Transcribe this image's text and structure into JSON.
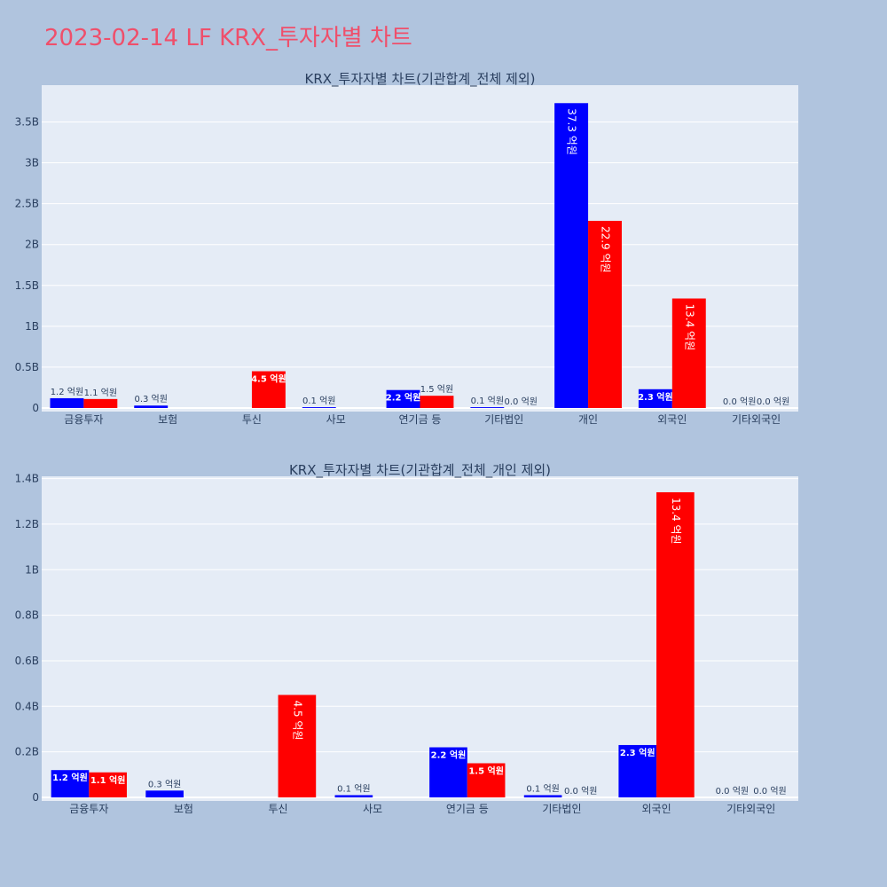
{
  "page": {
    "title": "2023-02-14 LF KRX_투자자별 차트"
  },
  "colors": {
    "background": "#b0c4de",
    "plot_bg": "#e5ecf6",
    "buy": "#0000ff",
    "sell": "#ff0000",
    "title": "#ef4f6b"
  },
  "chart_data": [
    {
      "type": "bar",
      "title": "KRX_투자자별 차트(기관합계_전체 제외)",
      "categories": [
        "금융투자",
        "보험",
        "투신",
        "사모",
        "연기금 등",
        "기타법인",
        "개인",
        "외국인",
        "기타외국인"
      ],
      "series": [
        {
          "color": "#0000ff",
          "values": [
            120000000,
            30000000,
            0,
            10000000,
            220000000,
            10000000,
            3730000000,
            230000000,
            0
          ],
          "labels": [
            "1.2 억원",
            "0.3 억원",
            "",
            "0.1 억원",
            "2.2 억원",
            "0.1 억원",
            "37.3 억원",
            "2.3 억원",
            "0.0 억원"
          ]
        },
        {
          "color": "#ff0000",
          "values": [
            110000000,
            0,
            450000000,
            0,
            150000000,
            0,
            2290000000,
            1340000000,
            0
          ],
          "labels": [
            "1.1 억원",
            "",
            "4.5 억원",
            "",
            "1.5 억원",
            "0.0 억원",
            "22.9 억원",
            "13.4 억원",
            "0.0 억원"
          ]
        }
      ],
      "ylim": [
        0,
        3950000000
      ],
      "yticks": [
        0,
        500000000,
        1000000000,
        1500000000,
        2000000000,
        2500000000,
        3000000000,
        3500000000
      ],
      "ytick_labels": [
        "0",
        "0.5B",
        "1B",
        "1.5B",
        "2B",
        "2.5B",
        "3B",
        "3.5B"
      ],
      "grid": true
    },
    {
      "type": "bar",
      "title": "KRX_투자자별 차트(기관합계_전체_개인 제외)",
      "categories": [
        "금융투자",
        "보험",
        "투신",
        "사모",
        "연기금 등",
        "기타법인",
        "외국인",
        "기타외국인"
      ],
      "series": [
        {
          "color": "#0000ff",
          "values": [
            120000000,
            30000000,
            0,
            10000000,
            220000000,
            10000000,
            230000000,
            0
          ],
          "labels": [
            "1.2 억원",
            "0.3 억원",
            "",
            "0.1 억원",
            "2.2 억원",
            "0.1 억원",
            "2.3 억원",
            "0.0 억원"
          ]
        },
        {
          "color": "#ff0000",
          "values": [
            110000000,
            0,
            450000000,
            0,
            150000000,
            0,
            1340000000,
            0
          ],
          "labels": [
            "1.1 억원",
            "",
            "4.5 억원",
            "",
            "1.5 억원",
            "0.0 억원",
            "13.4 억원",
            "0.0 억원"
          ]
        }
      ],
      "ylim": [
        0,
        1410000000
      ],
      "yticks": [
        0,
        200000000,
        400000000,
        600000000,
        800000000,
        1000000000,
        1200000000,
        1400000000
      ],
      "ytick_labels": [
        "0",
        "0.2B",
        "0.4B",
        "0.6B",
        "0.8B",
        "1B",
        "1.2B",
        "1.4B"
      ],
      "grid": true
    }
  ]
}
